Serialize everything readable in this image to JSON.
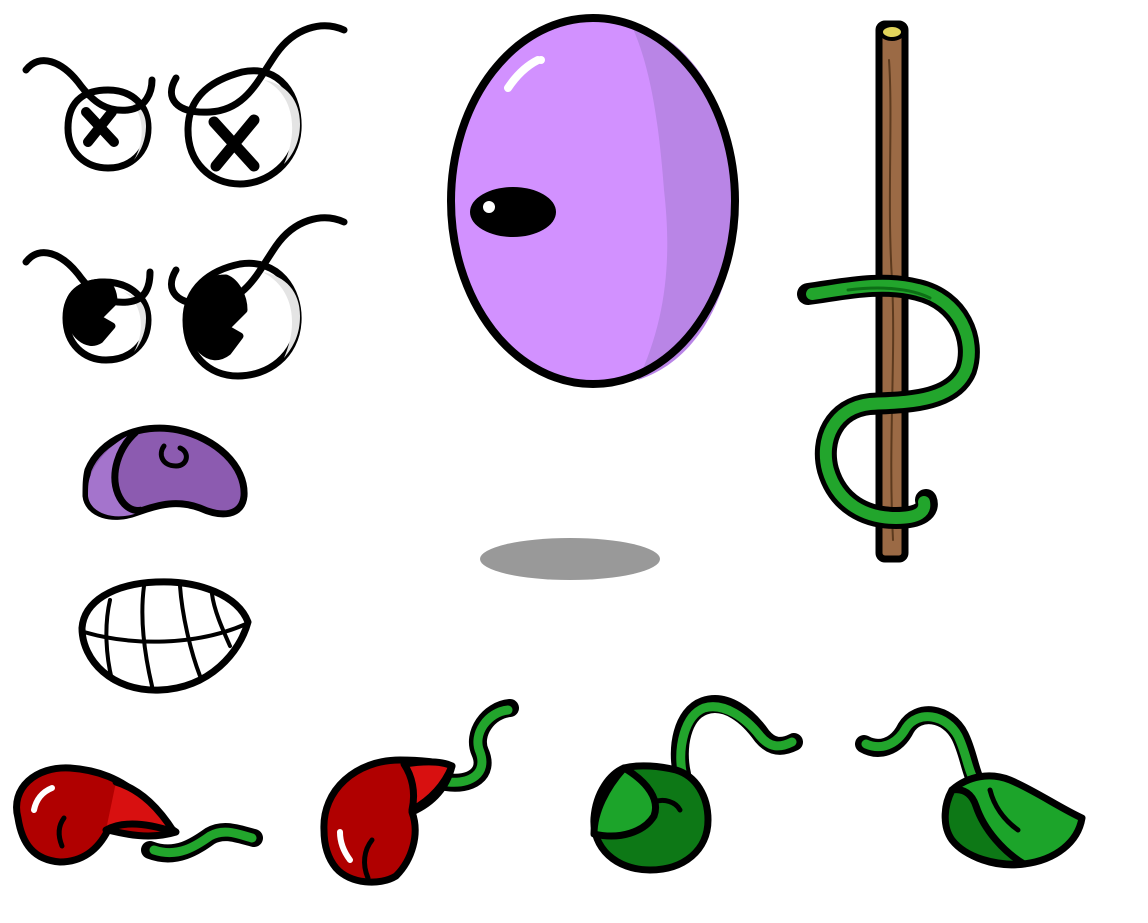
{
  "sheet": {
    "background": "#ffffff",
    "sprites": [
      "eyes-dizzy",
      "eyes-angry",
      "nose-bean",
      "mouth-grin",
      "body-grape",
      "shadow",
      "stake-with-vine",
      "cherry-leaf-left",
      "cherry-leaf-right",
      "green-leaf-left",
      "green-leaf-right"
    ]
  },
  "palette": {
    "outline": "#000000",
    "eye_white": "#ffffff",
    "eye_shade": "#e4e4e4",
    "grape": "#d291ff",
    "grape_shade": "#b985e6",
    "nose": "#8c5bb0",
    "nose_shade": "#a474cc",
    "shadow": "#999999",
    "stake": "#9b6a45",
    "stake_top": "#e1d45b",
    "vine": "#22a52c",
    "vine_dark": "#0d6f16",
    "berry": "#b00000",
    "berry_highlight": "#ff3a3a",
    "leaf": "#0d7816",
    "leaf_light": "#1ca42a"
  }
}
